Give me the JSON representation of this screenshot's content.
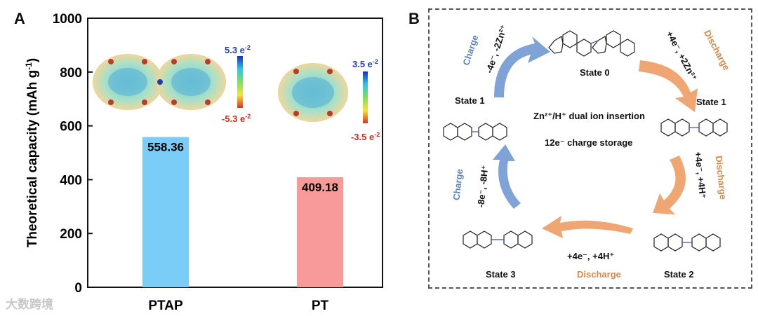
{
  "panel_a": {
    "letter": "A",
    "esp_scale_ptap": {
      "top": "5.3 e",
      "top_sup": "-2",
      "bottom": "-5.3 e",
      "bottom_sup": "-2"
    },
    "esp_scale_pt": {
      "top": "3.5 e",
      "top_sup": "-2",
      "bottom": "-3.5 e",
      "bottom_sup": "-2"
    }
  },
  "chart_data": {
    "type": "bar",
    "categories": [
      "PTAP",
      "PT"
    ],
    "values": [
      558.36,
      409.18
    ],
    "data_labels": [
      "558.36",
      "409.18"
    ],
    "colors": [
      "#79cdf7",
      "#f89a9a"
    ],
    "ylabel": "Theoretical capacity (mAh g",
    "ylabel_sup": "-1",
    "ylabel_end": ")",
    "ylim": [
      0,
      1000
    ],
    "yticks": [
      "0",
      "200",
      "400",
      "600",
      "800",
      "1000"
    ],
    "grid": false
  },
  "panel_b": {
    "letter": "B",
    "states": {
      "state0": "State 0",
      "state1_left": "State 1",
      "state1_right": "State 1",
      "state2": "State 2",
      "state3": "State 3"
    },
    "center_line1": "Zn²⁺/H⁺ dual ion insertion",
    "center_line2": "12e⁻ charge storage",
    "steps": {
      "top_left_action": "Charge",
      "top_left_ions": "-4e⁻, -2Zn²⁺",
      "top_right_action": "Discharge",
      "top_right_ions": "+4e⁻, +2Zn²⁺",
      "right_action": "Discharge",
      "right_ions": "+4e⁻, +4H⁺",
      "bottom_ions": "+4e⁻, +4H⁺",
      "bottom_action": "Discharge",
      "left_action": "Charge",
      "left_ions": "-8e⁻, -8H⁺"
    },
    "colors": {
      "charge": "#7fa3d6",
      "discharge": "#f0a672"
    }
  },
  "watermark": "大数跨境"
}
